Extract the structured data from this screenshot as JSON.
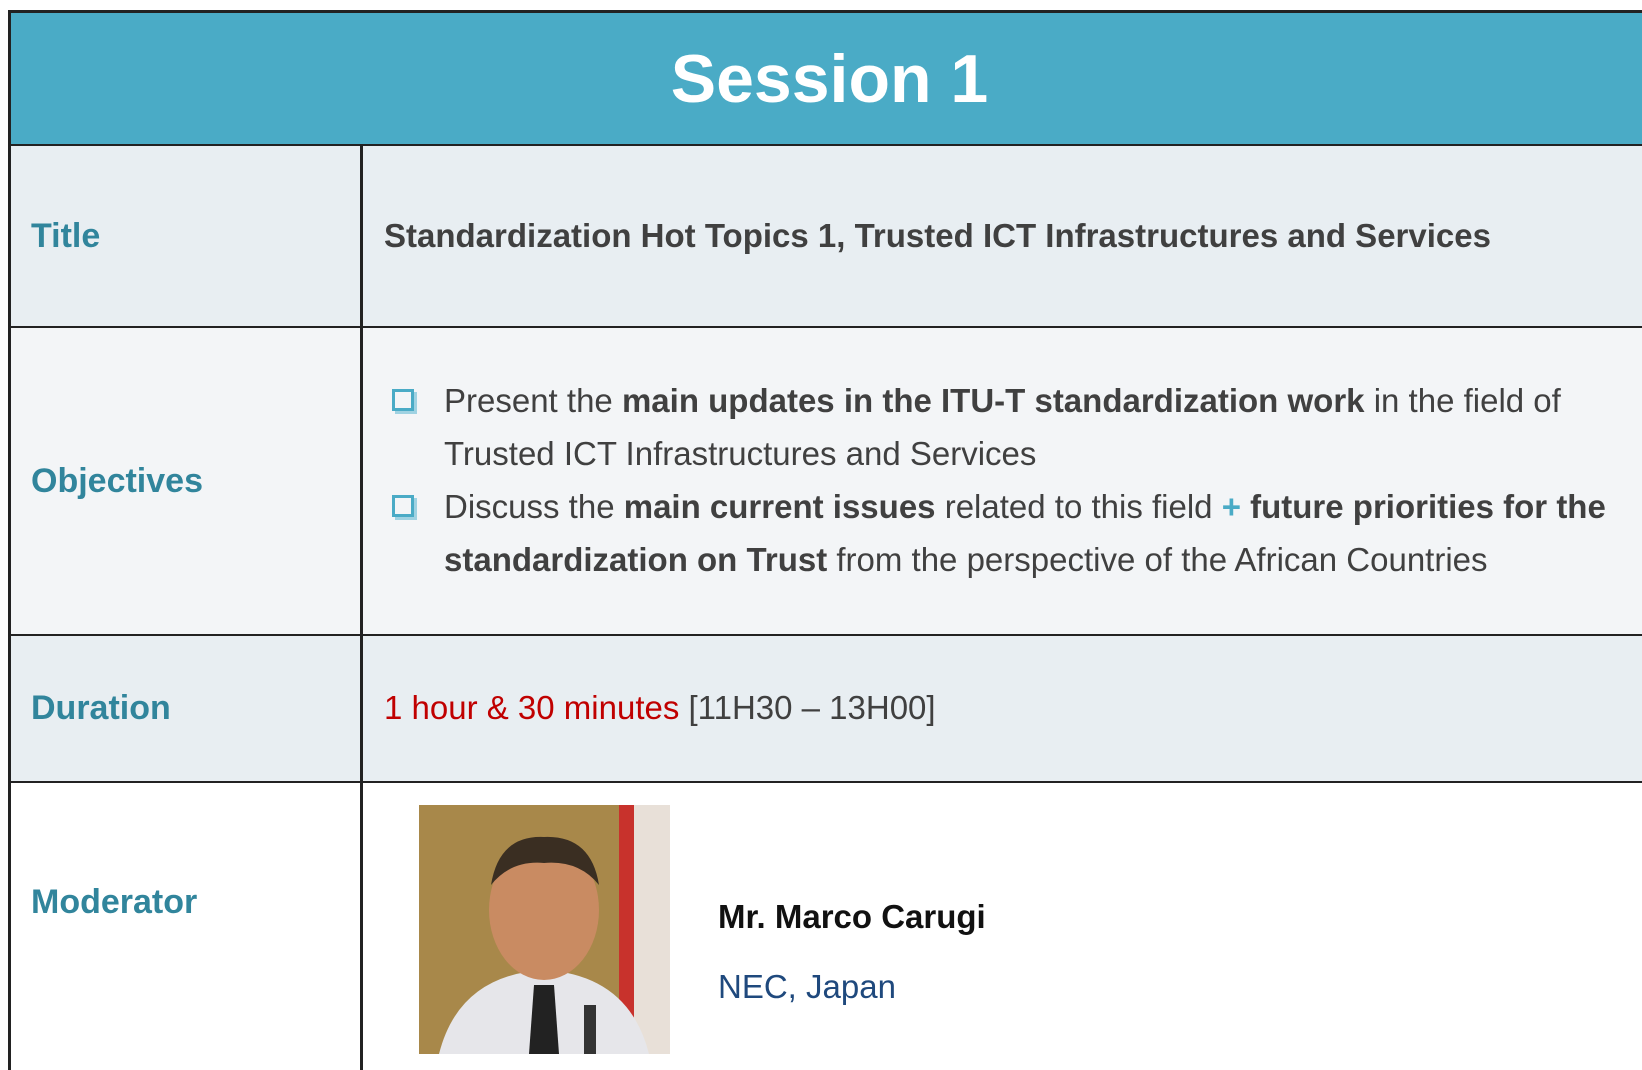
{
  "header": {
    "title": "Session 1"
  },
  "rows": [
    {
      "label": "Title",
      "value": "Standardization Hot Topics 1, Trusted ICT Infrastructures and Services"
    },
    {
      "label": "Objectives",
      "items": [
        [
          "Present the ",
          "main updates in the ITU-T standardization work",
          " in the field of Trusted ICT Infrastructures and Services"
        ],
        [
          "Discuss the ",
          "main current issues",
          " related to this field ",
          "+",
          " future priorities for the standardization on Trust",
          " from the perspective of the African Countries"
        ]
      ]
    },
    {
      "label": "Duration",
      "value": [
        "1 hour & 30 minutes",
        " [11H30 – 13H00]"
      ]
    },
    {
      "label": "Moderator",
      "name": "Mr. Marco Carugi",
      "organization": "NEC, Japan"
    }
  ]
}
